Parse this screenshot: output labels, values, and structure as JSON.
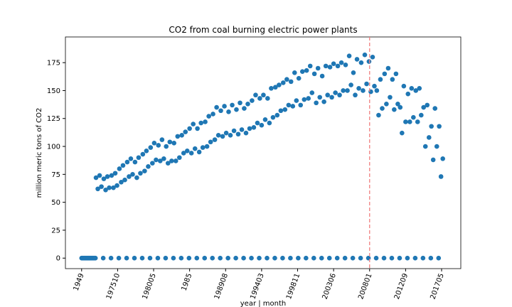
{
  "chart_data": {
    "type": "scatter",
    "title": "CO2 from coal burning electric power plants",
    "x_label": "year | month",
    "y_label": "million meric tons of CO2",
    "color": "#1f77b4",
    "vline": {
      "x": 480,
      "color": "#f08080"
    },
    "xlim": [
      -27,
      632
    ],
    "ylim": [
      -9.4,
      198
    ],
    "xticks": [
      {
        "value": 0,
        "label": "1949"
      },
      {
        "value": 60,
        "label": "197510"
      },
      {
        "value": 120,
        "label": "198005"
      },
      {
        "value": 180,
        "label": "1985"
      },
      {
        "value": 240,
        "label": "198908"
      },
      {
        "value": 300,
        "label": "199403"
      },
      {
        "value": 360,
        "label": "199811"
      },
      {
        "value": 420,
        "label": "200306"
      },
      {
        "value": 480,
        "label": "200801"
      },
      {
        "value": 540,
        "label": "201209"
      },
      {
        "value": 600,
        "label": "201705"
      }
    ],
    "yticks": [
      0,
      25,
      50,
      75,
      100,
      125,
      150,
      175
    ],
    "x": [
      0,
      1,
      2,
      3,
      4,
      5,
      6,
      7,
      8,
      9,
      10,
      11,
      12,
      13,
      14,
      15,
      16,
      17,
      18,
      19,
      20,
      21,
      22,
      23,
      24,
      27,
      30,
      33,
      36,
      37,
      40,
      43,
      46,
      49,
      50,
      53,
      56,
      59,
      62,
      63,
      66,
      69,
      72,
      75,
      76,
      79,
      82,
      85,
      88,
      89,
      92,
      95,
      98,
      101,
      102,
      105,
      108,
      111,
      114,
      115,
      118,
      121,
      124,
      127,
      128,
      131,
      134,
      137,
      140,
      141,
      144,
      147,
      150,
      153,
      154,
      157,
      160,
      163,
      166,
      167,
      170,
      173,
      176,
      179,
      180,
      183,
      186,
      189,
      192,
      193,
      196,
      199,
      202,
      205,
      206,
      209,
      212,
      215,
      218,
      219,
      222,
      225,
      228,
      231,
      232,
      235,
      238,
      241,
      244,
      245,
      248,
      251,
      254,
      257,
      258,
      261,
      264,
      267,
      270,
      271,
      274,
      277,
      280,
      283,
      284,
      287,
      290,
      293,
      296,
      297,
      300,
      303,
      306,
      309,
      310,
      313,
      316,
      319,
      322,
      323,
      326,
      329,
      332,
      335,
      336,
      339,
      342,
      345,
      348,
      349,
      352,
      355,
      358,
      361,
      362,
      365,
      368,
      371,
      374,
      375,
      378,
      381,
      384,
      387,
      388,
      391,
      394,
      397,
      400,
      401,
      404,
      407,
      410,
      413,
      414,
      417,
      420,
      423,
      426,
      427,
      430,
      433,
      436,
      439,
      440,
      443,
      446,
      449,
      452,
      453,
      456,
      459,
      462,
      465,
      466,
      469,
      472,
      475,
      478,
      479,
      482,
      485,
      488,
      491,
      492,
      495,
      498,
      501,
      504,
      505,
      508,
      511,
      514,
      517,
      518,
      521,
      524,
      527,
      530,
      531,
      534,
      537,
      540,
      543,
      544,
      547,
      550,
      553,
      556,
      557,
      560,
      563,
      566,
      569,
      570,
      573,
      576,
      579,
      582,
      583,
      586,
      589,
      592,
      595,
      596,
      599,
      602
    ],
    "values": [
      0,
      0,
      0,
      0,
      0,
      0,
      0,
      0,
      0,
      0,
      0,
      0,
      0,
      0,
      0,
      0,
      0,
      0,
      0,
      0,
      0,
      0,
      0,
      0,
      72,
      62,
      74,
      64,
      0,
      71,
      61,
      73,
      63,
      0,
      74,
      63,
      76,
      65,
      0,
      80,
      68,
      83,
      70,
      0,
      86,
      73,
      89,
      75,
      0,
      86,
      72,
      90,
      76,
      0,
      93,
      78,
      96,
      82,
      0,
      99,
      85,
      103,
      88,
      0,
      101,
      87,
      106,
      89,
      0,
      100,
      85,
      104,
      87,
      0,
      103,
      87,
      109,
      90,
      0,
      110,
      94,
      113,
      96,
      0,
      116,
      94,
      120,
      98,
      0,
      116,
      95,
      121,
      99,
      0,
      122,
      100,
      127,
      104,
      0,
      129,
      106,
      135,
      110,
      0,
      132,
      109,
      136,
      112,
      0,
      131,
      110,
      137,
      114,
      0,
      133,
      111,
      139,
      115,
      0,
      134,
      112,
      138,
      116,
      0,
      141,
      117,
      146,
      121,
      0,
      143,
      119,
      146,
      124,
      0,
      143,
      121,
      152,
      126,
      0,
      153,
      128,
      155,
      132,
      0,
      157,
      133,
      160,
      137,
      0,
      158,
      136,
      166,
      141,
      0,
      161,
      137,
      167,
      142,
      0,
      168,
      143,
      172,
      148,
      0,
      165,
      139,
      170,
      144,
      0,
      163,
      140,
      172,
      146,
      0,
      171,
      144,
      174,
      148,
      0,
      172,
      146,
      175,
      150,
      0,
      173,
      150,
      181,
      155,
      0,
      166,
      146,
      178,
      152,
      0,
      175,
      150,
      182,
      156,
      0,
      176,
      149,
      180,
      154,
      0,
      150,
      128,
      160,
      134,
      0,
      165,
      138,
      170,
      144,
      0,
      160,
      133,
      165,
      138,
      0,
      135,
      112,
      154,
      122,
      0,
      147,
      122,
      152,
      126,
      0,
      150,
      122,
      152,
      128,
      0,
      135,
      100,
      137,
      108,
      0,
      118,
      88,
      134,
      100,
      0,
      118,
      73,
      89
    ]
  }
}
